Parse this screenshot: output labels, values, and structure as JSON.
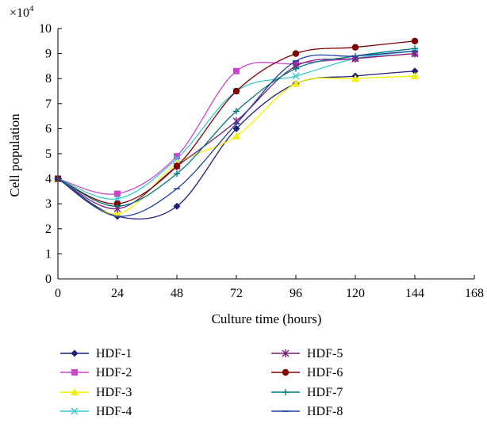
{
  "chart_data": {
    "type": "line",
    "title": "",
    "xlabel": "Culture time (hours)",
    "ylabel": "Cell population",
    "y_multiplier": "×10",
    "y_multiplier_exponent": "4",
    "xlim": [
      0,
      168
    ],
    "ylim": [
      0,
      10
    ],
    "x_ticks": [
      "0",
      "24",
      "48",
      "72",
      "96",
      "120",
      "144",
      "168"
    ],
    "y_ticks": [
      "0",
      "1",
      "2",
      "3",
      "4",
      "5",
      "6",
      "7",
      "8",
      "9",
      "10"
    ],
    "grid": false,
    "legend_position": "bottom",
    "x": [
      0,
      24,
      48,
      72,
      96,
      120,
      144
    ],
    "series": [
      {
        "name": "HDF-1",
        "marker": "diamond",
        "color": "#1f1f7a",
        "values": [
          4.0,
          2.5,
          2.9,
          6.0,
          7.8,
          8.1,
          8.3
        ]
      },
      {
        "name": "HDF-2",
        "marker": "square",
        "color": "#cc44cc",
        "values": [
          4.0,
          3.4,
          4.9,
          8.3,
          8.6,
          8.8,
          9.0
        ]
      },
      {
        "name": "HDF-3",
        "marker": "triangle",
        "color": "#f2f200",
        "values": [
          4.0,
          2.6,
          4.6,
          5.7,
          7.8,
          8.0,
          8.1
        ]
      },
      {
        "name": "HDF-4",
        "marker": "x",
        "color": "#33cccc",
        "values": [
          4.0,
          3.2,
          4.8,
          7.5,
          8.1,
          8.8,
          9.1
        ]
      },
      {
        "name": "HDF-5",
        "marker": "asterisk",
        "color": "#7a1f7a",
        "values": [
          4.0,
          2.8,
          4.5,
          6.3,
          8.5,
          8.8,
          9.0
        ]
      },
      {
        "name": "HDF-6",
        "marker": "circle",
        "color": "#800000",
        "values": [
          4.0,
          3.0,
          4.5,
          7.5,
          9.0,
          9.25,
          9.5
        ]
      },
      {
        "name": "HDF-7",
        "marker": "plus",
        "color": "#007a7a",
        "values": [
          4.0,
          2.9,
          4.2,
          6.7,
          8.4,
          8.9,
          9.2
        ]
      },
      {
        "name": "HDF-8",
        "marker": "dash",
        "color": "#2040a0",
        "values": [
          4.0,
          2.5,
          3.6,
          6.2,
          8.7,
          8.9,
          9.1
        ]
      }
    ]
  }
}
